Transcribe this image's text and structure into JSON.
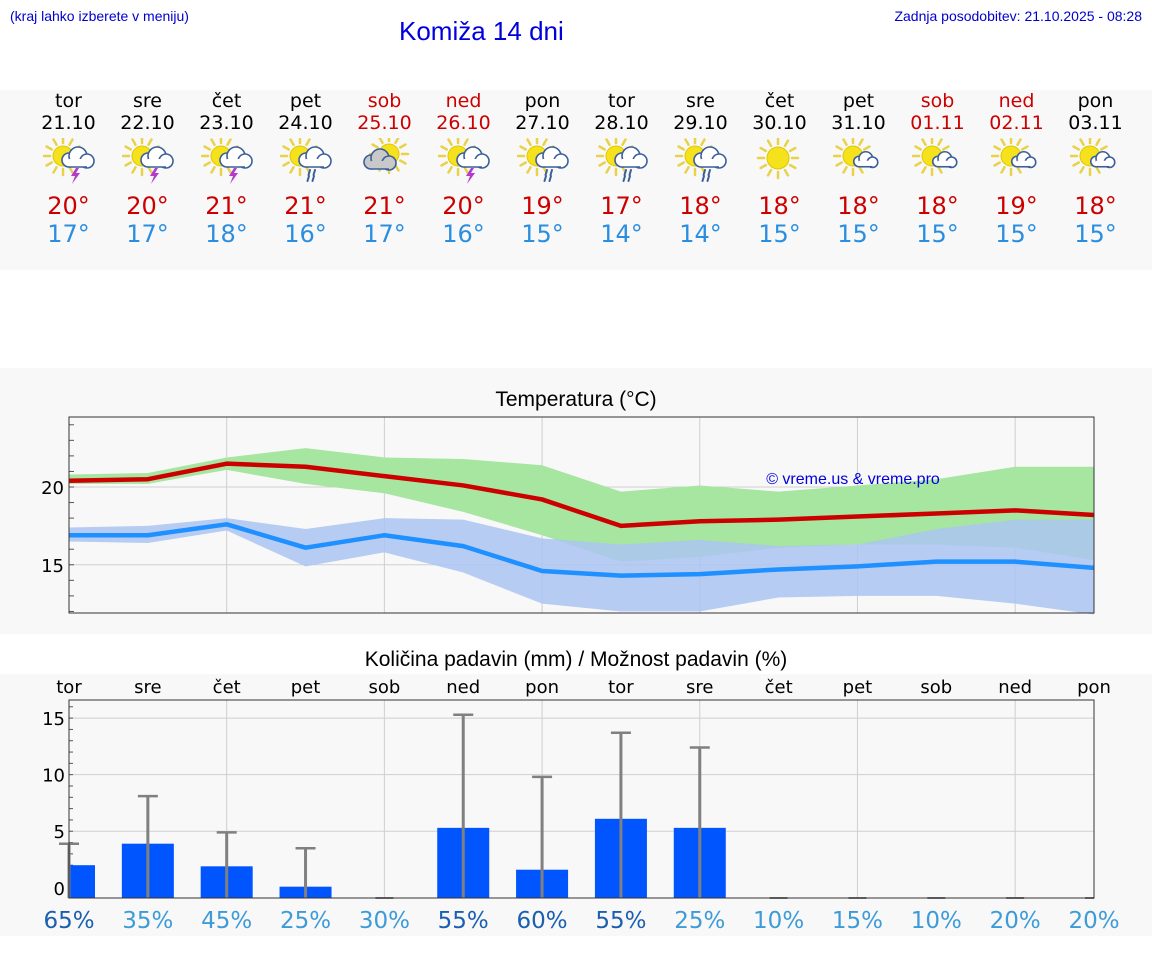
{
  "header": {
    "hint": "(kraj lahko izberete v meniju)",
    "title": "Komiža 14 dni",
    "updated": "Zadnja posodobitev: 21.10.2025 - 08:28"
  },
  "colors": {
    "max": "#cc0000",
    "min": "#2a8ee0",
    "weekend": "#cc0000",
    "bar": "#0055ff",
    "band_max": "#a6e6a0",
    "band_min": "#aac4f2"
  },
  "days": [
    {
      "name": "tor",
      "date": "21.10",
      "weekend": false,
      "icon": "sun-cloud-thunder-icon",
      "tmax": "20°",
      "tmin": "17°"
    },
    {
      "name": "sre",
      "date": "22.10",
      "weekend": false,
      "icon": "sun-cloud-thunder-icon",
      "tmax": "20°",
      "tmin": "17°"
    },
    {
      "name": "čet",
      "date": "23.10",
      "weekend": false,
      "icon": "sun-cloud-thunder-icon",
      "tmax": "21°",
      "tmin": "18°"
    },
    {
      "name": "pet",
      "date": "24.10",
      "weekend": false,
      "icon": "sun-cloud-rain-icon",
      "tmax": "21°",
      "tmin": "16°"
    },
    {
      "name": "sob",
      "date": "25.10",
      "weekend": true,
      "icon": "sun-behind-cloud-icon",
      "tmax": "21°",
      "tmin": "17°"
    },
    {
      "name": "ned",
      "date": "26.10",
      "weekend": true,
      "icon": "sun-cloud-thunder-icon",
      "tmax": "20°",
      "tmin": "16°"
    },
    {
      "name": "pon",
      "date": "27.10",
      "weekend": false,
      "icon": "sun-cloud-rain-icon",
      "tmax": "19°",
      "tmin": "15°"
    },
    {
      "name": "tor",
      "date": "28.10",
      "weekend": false,
      "icon": "sun-cloud-rain-icon",
      "tmax": "17°",
      "tmin": "14°"
    },
    {
      "name": "sre",
      "date": "29.10",
      "weekend": false,
      "icon": "sun-cloud-rain-icon",
      "tmax": "18°",
      "tmin": "14°"
    },
    {
      "name": "čet",
      "date": "30.10",
      "weekend": false,
      "icon": "sun-icon",
      "tmax": "18°",
      "tmin": "15°"
    },
    {
      "name": "pet",
      "date": "31.10",
      "weekend": false,
      "icon": "sun-small-cloud-icon",
      "tmax": "18°",
      "tmin": "15°"
    },
    {
      "name": "sob",
      "date": "01.11",
      "weekend": true,
      "icon": "sun-small-cloud-icon",
      "tmax": "18°",
      "tmin": "15°"
    },
    {
      "name": "ned",
      "date": "02.11",
      "weekend": true,
      "icon": "sun-small-cloud-icon",
      "tmax": "19°",
      "tmin": "15°"
    },
    {
      "name": "pon",
      "date": "03.11",
      "weekend": false,
      "icon": "sun-small-cloud-icon",
      "tmax": "18°",
      "tmin": "15°"
    }
  ],
  "chart_data": [
    {
      "type": "line",
      "title": "Temperatura (°C)",
      "watermark": "© vreme.us & vreme.pro",
      "x": [
        "21.10",
        "22.10",
        "23.10",
        "24.10",
        "25.10",
        "26.10",
        "27.10",
        "28.10",
        "29.10",
        "30.10",
        "31.10",
        "01.11",
        "02.11",
        "03.11"
      ],
      "yticks": [
        15,
        20
      ],
      "ylim": [
        11.9,
        24.5
      ],
      "grid": true,
      "series": [
        {
          "values": [
            20.4,
            20.5,
            21.5,
            21.3,
            20.7,
            20.1,
            19.2,
            17.5,
            17.8,
            17.9,
            18.1,
            18.3,
            18.5,
            18.2
          ],
          "band_low": [
            20.2,
            20.2,
            21.1,
            20.2,
            19.6,
            18.4,
            16.9,
            15.2,
            15.5,
            16.1,
            16.3,
            16.3,
            16.1,
            15.3
          ],
          "band_high": [
            20.8,
            20.9,
            21.9,
            22.5,
            21.9,
            21.8,
            21.4,
            19.7,
            20.1,
            19.7,
            20.1,
            20.5,
            21.3,
            21.3
          ]
        },
        {
          "values": [
            16.9,
            16.9,
            17.6,
            16.1,
            16.9,
            16.2,
            14.6,
            14.3,
            14.4,
            14.7,
            14.9,
            15.2,
            15.2,
            14.8
          ],
          "band_low": [
            16.5,
            16.4,
            17.2,
            14.9,
            15.8,
            14.5,
            12.5,
            12.0,
            12.0,
            12.9,
            13.0,
            13.0,
            12.5,
            11.8
          ],
          "band_high": [
            17.4,
            17.5,
            18.0,
            17.3,
            18.0,
            17.9,
            16.7,
            16.3,
            16.6,
            16.2,
            16.3,
            17.3,
            17.9,
            17.9
          ]
        }
      ]
    },
    {
      "type": "bar",
      "title": "Količina padavin (mm) / Možnost padavin (%)",
      "categories": [
        "tor",
        "sre",
        "čet",
        "pet",
        "sob",
        "ned",
        "pon",
        "tor",
        "sre",
        "čet",
        "pet",
        "sob",
        "ned",
        "pon"
      ],
      "values": [
        2.0,
        3.9,
        1.9,
        0.1,
        0.0,
        5.3,
        1.6,
        6.1,
        5.3,
        0.0,
        0.0,
        0.0,
        0.0,
        0.0
      ],
      "error_high": [
        3.9,
        8.1,
        4.9,
        3.5,
        0.0,
        15.3,
        9.8,
        13.7,
        12.4,
        0.0,
        0.0,
        0.0,
        0.0,
        0.0
      ],
      "probabilities": [
        "65%",
        "35%",
        "45%",
        "25%",
        "30%",
        "55%",
        "60%",
        "55%",
        "25%",
        "10%",
        "15%",
        "10%",
        "20%",
        "20%"
      ],
      "yticks": [
        0,
        5,
        10,
        15
      ],
      "ylim": [
        -0.9,
        16.6
      ],
      "grid": true
    }
  ]
}
